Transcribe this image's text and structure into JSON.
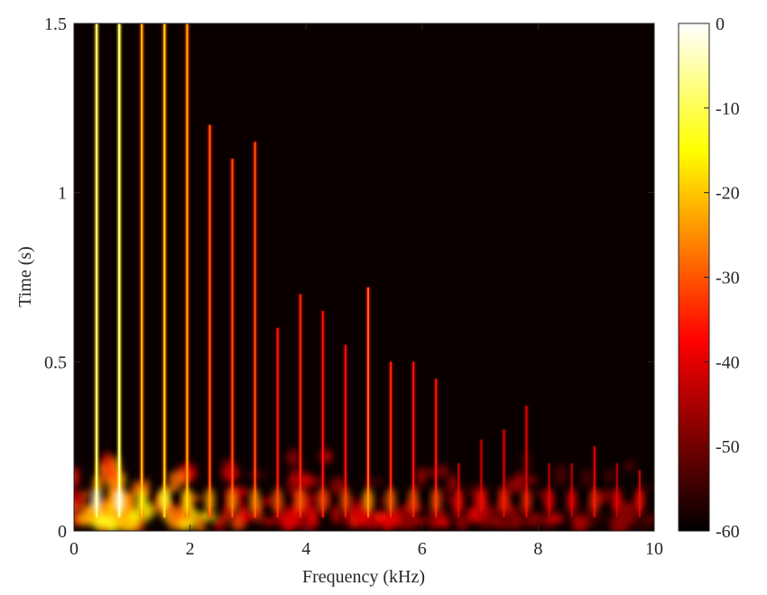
{
  "chart_data": {
    "type": "heatmap",
    "title": "",
    "xlabel": "Frequency (kHz)",
    "ylabel": "Time (s)",
    "xlim": [
      0,
      10
    ],
    "ylim": [
      0,
      1.5
    ],
    "xticks": [
      0,
      2,
      4,
      6,
      8,
      10
    ],
    "xtick_labels": [
      "0",
      "2",
      "4",
      "6",
      "8",
      "10"
    ],
    "yticks": [
      0,
      0.5,
      1,
      1.5
    ],
    "ytick_labels": [
      "0",
      "0.5",
      "1",
      "1.5"
    ],
    "colorbar": {
      "colormap": "hot",
      "clim": [
        -60,
        0
      ],
      "ticks": [
        0,
        -10,
        -20,
        -30,
        -40,
        -50,
        -60
      ],
      "tick_labels": [
        "0",
        "-10",
        "-20",
        "-30",
        "-40",
        "-50",
        "-60"
      ]
    },
    "background_level_db": -60,
    "harmonic_lines": [
      {
        "freq_khz": 0.39,
        "top_s": 1.5,
        "peak_db": -8
      },
      {
        "freq_khz": 0.78,
        "top_s": 1.5,
        "peak_db": -5
      },
      {
        "freq_khz": 1.17,
        "top_s": 1.5,
        "peak_db": -20
      },
      {
        "freq_khz": 1.56,
        "top_s": 1.5,
        "peak_db": -18
      },
      {
        "freq_khz": 1.95,
        "top_s": 1.5,
        "peak_db": -22
      },
      {
        "freq_khz": 2.34,
        "top_s": 1.2,
        "peak_db": -28
      },
      {
        "freq_khz": 2.73,
        "top_s": 1.1,
        "peak_db": -30
      },
      {
        "freq_khz": 3.12,
        "top_s": 1.15,
        "peak_db": -30
      },
      {
        "freq_khz": 3.51,
        "top_s": 0.6,
        "peak_db": -35
      },
      {
        "freq_khz": 3.9,
        "top_s": 0.7,
        "peak_db": -34
      },
      {
        "freq_khz": 4.29,
        "top_s": 0.65,
        "peak_db": -36
      },
      {
        "freq_khz": 4.68,
        "top_s": 0.55,
        "peak_db": -36
      },
      {
        "freq_khz": 5.07,
        "top_s": 0.72,
        "peak_db": -28
      },
      {
        "freq_khz": 5.46,
        "top_s": 0.5,
        "peak_db": -34
      },
      {
        "freq_khz": 5.85,
        "top_s": 0.5,
        "peak_db": -36
      },
      {
        "freq_khz": 6.24,
        "top_s": 0.45,
        "peak_db": -36
      },
      {
        "freq_khz": 6.63,
        "top_s": 0.2,
        "peak_db": -42
      },
      {
        "freq_khz": 7.02,
        "top_s": 0.27,
        "peak_db": -42
      },
      {
        "freq_khz": 7.41,
        "top_s": 0.3,
        "peak_db": -40
      },
      {
        "freq_khz": 7.8,
        "top_s": 0.37,
        "peak_db": -40
      },
      {
        "freq_khz": 8.19,
        "top_s": 0.2,
        "peak_db": -44
      },
      {
        "freq_khz": 8.58,
        "top_s": 0.2,
        "peak_db": -44
      },
      {
        "freq_khz": 8.97,
        "top_s": 0.25,
        "peak_db": -40
      },
      {
        "freq_khz": 9.36,
        "top_s": 0.2,
        "peak_db": -44
      },
      {
        "freq_khz": 9.75,
        "top_s": 0.18,
        "peak_db": -42
      }
    ],
    "onset_band": {
      "time_range_s": [
        0.02,
        0.25
      ],
      "strongest_freq_range_khz": [
        0.2,
        2.5
      ],
      "peak_db": -5
    }
  }
}
